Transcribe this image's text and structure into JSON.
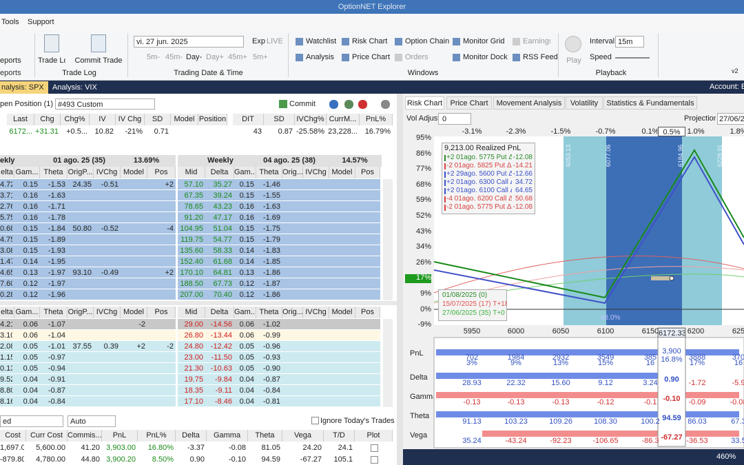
{
  "title": "OptionNET Explorer",
  "menu": [
    "Tools",
    "Support"
  ],
  "ribbon": {
    "reports": {
      "button": "eports",
      "group": "eports"
    },
    "trade_log": {
      "buttons": [
        "Trade Log",
        "Commit Trade"
      ],
      "group": "Trade Log"
    },
    "trading": {
      "date": "vi. 27 jun. 2025",
      "exp": "Exp",
      "live": "LIVE",
      "steps": [
        "5m-",
        "45m-",
        "Day-",
        "Day+",
        "45m+",
        "5m+"
      ],
      "group": "Trading Date & Time"
    },
    "windows": {
      "items": [
        "Watchlist",
        "Risk Chart",
        "Option Chain",
        "Monitor Grid",
        "Earnings",
        "Analysis",
        "Price Chart",
        "Orders",
        "Monitor Dock",
        "RSS Feed"
      ],
      "group": "Windows"
    },
    "playback": {
      "play": "Play",
      "interval_label": "Interval",
      "interval": "15m",
      "speed": "Speed",
      "group": "Playback"
    },
    "version": "v2"
  },
  "tabs": [
    "nalysis: SPX",
    "Analysis: VIX"
  ],
  "account": "Account: E",
  "position": {
    "label": "pen Position (1)",
    "select": "#493 Custom",
    "commit": "Commit"
  },
  "summary": {
    "headers": [
      "Last",
      "Chg",
      "Chg%",
      "IV",
      "IV Chg",
      "SD",
      "Model",
      "Position",
      "DIT",
      "SD",
      "IVChg%",
      "CurrM...",
      "PnL%"
    ],
    "values": [
      "6172...",
      "+31.31",
      "+0.5...",
      "10.82",
      "-21%",
      "0.71",
      null,
      null,
      "43",
      "0.87",
      "-25.58%",
      "23,228...",
      "16.79%"
    ]
  },
  "upper": {
    "left_title": [
      "ekly",
      "01 ago. 25 (35)",
      "13.69%"
    ],
    "right_title": [
      "Weekly",
      "04 ago. 25 (38)",
      "14.57%"
    ],
    "left_headers": [
      "elta",
      "Gam...",
      "Theta",
      "OrigP...",
      "IVChg",
      "Model",
      "Pos"
    ],
    "right_headers": [
      "Mid",
      "Delta",
      "Gam...",
      "Theta",
      "Orig...",
      "IVChg",
      "Model",
      "Pos"
    ],
    "left_rows": [
      [
        "4.72",
        "0.15",
        "-1.53",
        "24.35",
        "-0.51",
        null,
        "+2"
      ],
      [
        "3.71",
        "0.16",
        "-1.63"
      ],
      [
        "2.76",
        "0.16",
        "-1.71"
      ],
      [
        "5.75",
        "0.16",
        "-1.78"
      ],
      [
        "0.68",
        "0.15",
        "-1.84",
        "50.80",
        "-0.52",
        null,
        "-4"
      ],
      [
        "4.75",
        "0.15",
        "-1.89"
      ],
      [
        "3.08",
        "0.15",
        "-1.93"
      ],
      [
        "1.47",
        "0.14",
        "-1.95"
      ],
      [
        "4.65",
        "0.13",
        "-1.97",
        "93.10",
        "-0.49",
        null,
        "+2"
      ],
      [
        "7.60",
        "0.12",
        "-1.97"
      ],
      [
        "0.28",
        "0.12",
        "-1.96"
      ]
    ],
    "right_rows": [
      [
        "57.10",
        "35.27",
        "0.15",
        "-1.46"
      ],
      [
        "67.35",
        "39.24",
        "0.15",
        "-1.55"
      ],
      [
        "78.65",
        "43.23",
        "0.16",
        "-1.63"
      ],
      [
        "91.20",
        "47.17",
        "0.16",
        "-1.69"
      ],
      [
        "104.95",
        "51.04",
        "0.15",
        "-1.75"
      ],
      [
        "119.75",
        "54.77",
        "0.15",
        "-1.79"
      ],
      [
        "135.60",
        "58.33",
        "0.14",
        "-1.83"
      ],
      [
        "152.40",
        "61.68",
        "0.14",
        "-1.85"
      ],
      [
        "170.10",
        "64.81",
        "0.13",
        "-1.86"
      ],
      [
        "188.50",
        "67.73",
        "0.12",
        "-1.87"
      ],
      [
        "207.00",
        "70.40",
        "0.12",
        "-1.86"
      ]
    ]
  },
  "lower": {
    "left_headers": [
      "elta",
      "Gam...",
      "Theta",
      "OrigP...",
      "IVChg",
      "Model",
      "Pos"
    ],
    "right_headers": [
      "Mid",
      "Delta",
      "Gam...",
      "Theta",
      "Orig...",
      "IVChg",
      "Model",
      "Pos"
    ],
    "left_rows": [
      [
        "4.21",
        "0.06",
        "-1.07",
        null,
        null,
        "-2"
      ],
      [
        "3.10",
        "0.06",
        "-1.04"
      ],
      [
        "2.08",
        "0.05",
        "-1.01",
        "37.55",
        "0.39",
        "+2",
        "-2"
      ],
      [
        "1.15",
        "0.05",
        "-0.97"
      ],
      [
        "0.13",
        "0.05",
        "-0.94"
      ],
      [
        "9.52",
        "0.04",
        "-0.91"
      ],
      [
        "8.80",
        "0.04",
        "-0.87"
      ],
      [
        "8.16",
        "0.04",
        "-0.84"
      ]
    ],
    "right_rows": [
      [
        "29.00",
        "-14.56",
        "0.06",
        "-1.02"
      ],
      [
        "26.80",
        "-13.44",
        "0.06",
        "-0.99"
      ],
      [
        "24.80",
        "-12.42",
        "0.05",
        "-0.96"
      ],
      [
        "23.00",
        "-11.50",
        "0.05",
        "-0.93"
      ],
      [
        "21.30",
        "-10.63",
        "0.05",
        "-0.90"
      ],
      [
        "19.75",
        "-9.84",
        "0.04",
        "-0.87"
      ],
      [
        "18.35",
        "-9.11",
        "0.04",
        "-0.84"
      ],
      [
        "17.10",
        "-8.46",
        "0.04",
        "-0.81"
      ]
    ]
  },
  "trades": {
    "filter": "ed",
    "mode": "Auto",
    "ignore": "Ignore Today's Trades",
    "headers": [
      "Cost",
      "Curr Cost",
      "Commis...",
      "PnL",
      "PnL%",
      "Delta",
      "Gamma",
      "Theta",
      "Vega",
      "T/D",
      "Plot"
    ],
    "rows": [
      [
        "1,697.00",
        "5,600.00",
        "41.20",
        "3,903.00",
        "16.80%",
        "-3.37",
        "-0.08",
        "81.05",
        "24.20",
        "24.1"
      ],
      [
        "-879.80",
        "4,780.00",
        "44.80",
        "3,900.20",
        "8.50%",
        "0.90",
        "-0.10",
        "94.59",
        "-67.27",
        "105.1"
      ]
    ]
  },
  "risk": {
    "tabs": [
      "Risk Chart",
      "Price Chart",
      "Movement Analysis",
      "Volatility",
      "Statistics & Fundamentals"
    ],
    "vol_adjust_label": "Vol Adjust",
    "vol_adjust": "0",
    "projection_label": "Projection",
    "projection": "27/06/2",
    "top_axis": [
      "-3.1%",
      "-2.3%",
      "-1.5%",
      "-0.7%",
      "0.1%",
      "0.5%",
      "1.0%",
      "1.8%"
    ],
    "y_axis": [
      "95%",
      "86%",
      "77%",
      "68%",
      "59%",
      "52%",
      "43%",
      "34%",
      "26%",
      "17%",
      "9%",
      "0%",
      "-9%"
    ],
    "x_axis": [
      "5950",
      "6000",
      "6050",
      "6100",
      "6150",
      "6200",
      "625"
    ],
    "strike_labels": [
      "6053.13",
      "6077.06",
      "6184.96",
      "6228.91"
    ],
    "bottom_label": "68.0%",
    "legend": {
      "title": "9,213.00 Realized PnL",
      "items": [
        {
          "text": "+2 01ago. 5775 Put Δ",
          "value": "-12.08",
          "color": "#2a8a2a"
        },
        {
          "text": "-2 01ago. 5825 Put Δ",
          "value": "-14.21",
          "color": "#d84040"
        },
        {
          "text": "+2 29ago. 5600 Put Δ",
          "value": "-12.66",
          "color": "#3a50c8"
        },
        {
          "text": "+2 01ago. 6300 Call Δ",
          "value": "34.72",
          "color": "#3a50c8"
        },
        {
          "text": "+2 01ago. 6100 Call Δ",
          "value": "64.65",
          "color": "#3a50c8"
        },
        {
          "text": "-4 01ago. 6200 Call Δ",
          "value": "50.68",
          "color": "#d84040"
        },
        {
          "text": "-2 01ago. 5775 Put Δ",
          "value": "-12.08",
          "color": "#d84040"
        }
      ]
    },
    "dates": [
      {
        "text": "01/08/2025 (0)",
        "color": "#2a8a2a"
      },
      {
        "text": "15/07/2025 (17) T+18",
        "color": "#e05050"
      },
      {
        "text": "27/06/2025 (35) T+0",
        "color": "#40b040"
      }
    ],
    "greeks": {
      "labels": [
        "PnL",
        "Delta",
        "Gamma",
        "Theta",
        "Vega"
      ],
      "pnl": [
        [
          "702",
          "3%"
        ],
        [
          "1984",
          "9%"
        ],
        [
          "2932",
          "13%"
        ],
        [
          "3549",
          "15%"
        ],
        [
          "385",
          "16"
        ],
        [
          "3888",
          "17%"
        ],
        [
          "370",
          "16"
        ]
      ],
      "delta": [
        "28.93",
        "22.32",
        "15.60",
        "9.12",
        "3.24",
        "-1.72",
        "-5.9"
      ],
      "gamma": [
        "-0.13",
        "-0.13",
        "-0.13",
        "-0.12",
        "-0.1",
        "-0.09",
        "-0.08"
      ],
      "theta": [
        "91.13",
        "103.23",
        "109.26",
        "108.30",
        "100.2",
        "86.03",
        "67.3"
      ],
      "vega": [
        "35.24",
        "-43.24",
        "-92.23",
        "-106.65",
        "-86.3",
        "-36.53",
        "33.5"
      ],
      "cursor": {
        "price": "6172.33",
        "pnl": "3,900",
        "pnl_pct": "16.8%",
        "delta": "0.90",
        "gamma": "-0.10",
        "theta": "94.59",
        "vega": "-67.27"
      }
    },
    "zoom": "460%"
  }
}
